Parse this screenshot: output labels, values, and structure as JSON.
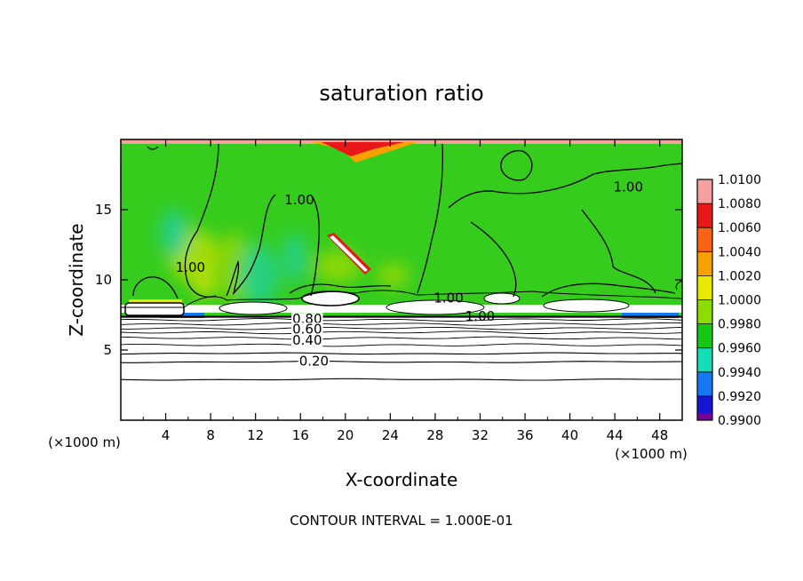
{
  "chart_data": {
    "type": "heatmap",
    "title": "saturation ratio",
    "xlabel": "X-coordinate",
    "ylabel": "Z-coordinate",
    "x_unit": "(×1000 m)",
    "y_unit": "(×1000 m)",
    "xlim": [
      0,
      50
    ],
    "ylim": [
      0,
      20
    ],
    "x_ticks": [
      4,
      8,
      12,
      16,
      20,
      24,
      28,
      32,
      36,
      40,
      44,
      48
    ],
    "y_ticks": [
      5,
      10,
      15
    ],
    "colorbar": {
      "levels": [
        "1.0100",
        "1.0080",
        "1.0060",
        "1.0040",
        "1.0020",
        "1.0000",
        "0.9980",
        "0.9960",
        "0.9940",
        "0.9920",
        "0.9900"
      ],
      "colors": [
        "#f4a0a0",
        "#e81818",
        "#f86414",
        "#f8a000",
        "#e8e800",
        "#8cdc00",
        "#14c814",
        "#14dcb4",
        "#1478f0",
        "#1414d2",
        "#780096"
      ]
    },
    "contour_labels": [
      {
        "text": "1.00",
        "x": 15.9,
        "z": 15.7
      },
      {
        "text": "1.00",
        "x": 45.2,
        "z": 16.6
      },
      {
        "text": "1.00",
        "x": 6.2,
        "z": 10.9
      },
      {
        "text": "1.00",
        "x": 29.2,
        "z": 8.7
      },
      {
        "text": "1.00",
        "x": 32.0,
        "z": 7.4
      },
      {
        "text": "0.80",
        "x": 16.6,
        "z": 7.2
      },
      {
        "text": "0.60",
        "x": 16.6,
        "z": 6.5
      },
      {
        "text": "0.40",
        "x": 16.6,
        "z": 5.7
      },
      {
        "text": "0.20",
        "x": 17.2,
        "z": 4.2
      }
    ],
    "stable_contours_z": [
      2.9,
      4.15,
      4.75,
      5.35,
      5.85,
      6.25,
      6.55,
      6.85,
      7.15
    ],
    "footer": "CONTOUR INTERVAL = 1.000E-01"
  }
}
